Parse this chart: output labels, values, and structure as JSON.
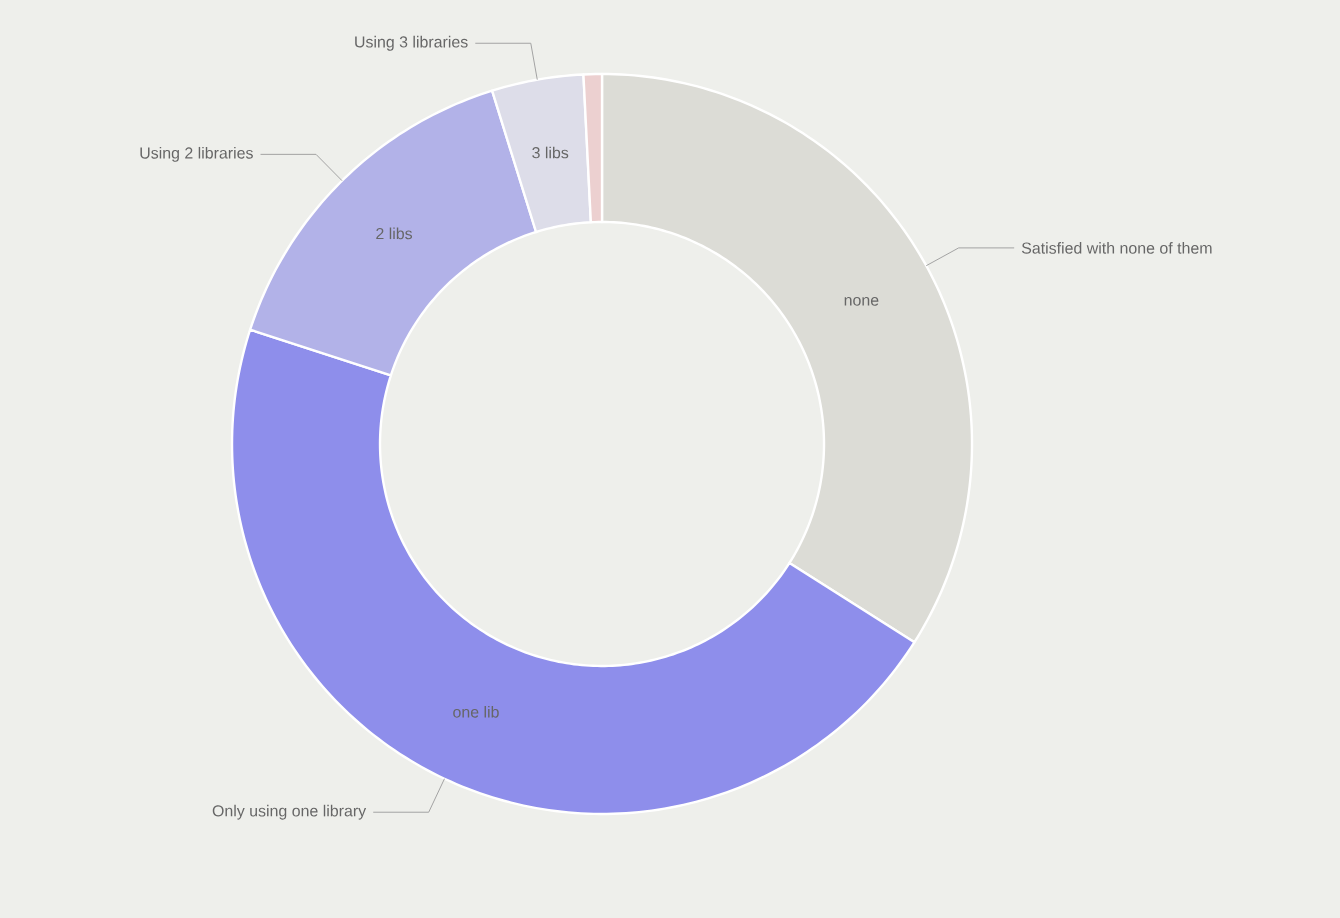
{
  "chart_data": {
    "type": "donut",
    "categories": [
      "Satisfied with none of them",
      "Only using one library",
      "Using 2 libraries",
      "Using 3 libraries",
      null
    ],
    "values": [
      34,
      46,
      15.2,
      4,
      0.8
    ],
    "colors": [
      "#dcdcd6",
      "#8e8eeb",
      "#b2b2e8",
      "#dddde9",
      "#ecd0d0"
    ],
    "annotations": [
      "none",
      "one lib",
      "2 libs",
      "3 libs"
    ]
  }
}
